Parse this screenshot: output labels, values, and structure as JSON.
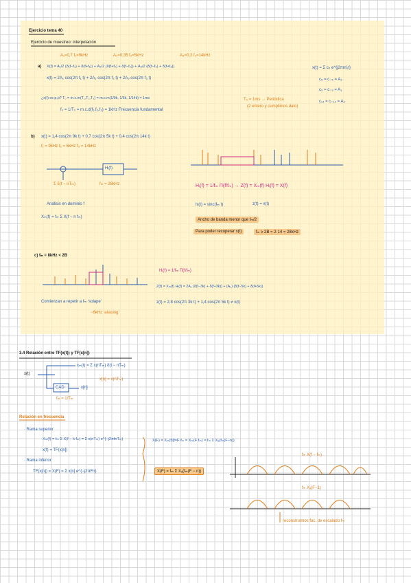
{
  "header": {
    "title": "Ejercicio tema 40",
    "subtitle": "Ejercicio de muestreo: interpolación",
    "params": [
      "A₁=0,7  f₁=9kHz",
      "A₂=0,35  f₂=5kHz",
      "A₃=0,2  f₃=14kHz"
    ]
  },
  "part_a": {
    "label": "a)",
    "eq1": "X(f) = A₁/2 (δ(f−f₁) + δ(f+f₁)) + A₂/2 (δ(f+f₂) + δ(f−f₂)) + A₃/2 (δ(f−f₃) + δ(f+f₃))",
    "eq2": "x(t) = 2A₁ cos(2π f₁ t) + 2A₂ cos(2π f₂ t) + 2A₃ cos(2π f₃ t)",
    "note_periodic": "¿x(t) es p.p?   T₀ = m.c.m(T₁,T₂,T₃) = m.c.m(1/9k, 1/5k, 1/14k) = 1ms",
    "f0": "f₀ = 1/T₀ = m.c.d(f₁,f₂,f₃) = 1kHz   Frecuencia fundamental",
    "result": "T₀ = 1ms → Periódica",
    "result_note": "(2 entero y cumplimos dato)",
    "fourier": [
      "x(t) = Σ cₙ e^{j2πnf₀t}",
      "c₅ = c₋₅ = A₂",
      "c₉ = c₋₉ = A₁",
      "c₁₄ = c₋₁₄ = A₃"
    ]
  },
  "part_b": {
    "label": "b)",
    "eq": "x(t) = 1,4 cos(2π 9k t) + 0,7 cos(2π 5k t) + 0,4 cos(2π 14k t)",
    "freqs": "f₁ = 9kHz   f₂ = 5kHz   f₃ = 14kHz",
    "block": "Hᵢ(f)",
    "block_in": "Σ δ(t − nTₘ)",
    "block_fm": "fₘ = 28kHz",
    "filter": "Hᵢ(f) = 1/fₘ Π(f/fₘ) → Z(f) = Xₘ(f) Hᵢ(f) = X(f)",
    "analysis": "Análisis en dominio f",
    "xm": "Xₘ(f) = fₘ Σ X(f − n fₘ)",
    "ht": "hᵢ(t) = sinc(fₘ t)",
    "zt": "z(t) = x(t)",
    "bandwidth": "Ancho de banda menor que fₘ/2",
    "recover": "Para poder recuperar x(t)",
    "nyquist": "fₘ ≥ 2B = 2·14 = 28kHz"
  },
  "part_c": {
    "label": "c) fₘ = 8kHz < 2B",
    "filter": "Hᵢ(f) = 1/fₘ Π(f/fₘ)",
    "zf": "Z(f) = Xₘ(f) Hᵢ(f) = 2A₁ (δ(f−3k) + δ(f+3k)) + (A₂) (δ(f−5k) + δ(f+5k))",
    "zt": "z(t) = 2,8 cos(2π 3k t) + 1,4 cos(2π 5k t) ≠ x(t)",
    "note": "Comienzan a repetir a fₘ   ‘solape’",
    "alias": "−6kHz ‘aliasing’"
  },
  "section": {
    "title": "3.4 Relación entre TF(x(t)) y TF(x[n])",
    "xt": "x(t)",
    "xm": "xₘ(t) = Σ x(nTₘ) δ(t − nTₘ)",
    "xn": "x[n] = x(nTₘ)",
    "cad": "CAD",
    "fm": "fₘ = 1/Tₘ",
    "out": "x[n]",
    "freq_title": "Relación en frecuencia",
    "upper": "· Rama superior",
    "upper_eq": "Xₘ(f) = fₘ Σ X(f − k fₘ) = Σ x(nTₘ) e^{−j2πfnTₘ}",
    "upper_tf": "x(f) = TF(x[n])",
    "lower": "· Rama inferior",
    "lower_eq": "TF(x[n]) = X(F) = Σ x[n] e^{−j2πFn}",
    "relation": "X(F) = Xₘ(f)|f=F·fₘ = Xₘ(F fₘ) = fₘ Σ Xₐ(fₘ(F−n))",
    "box": "X(F) = fₘ Σ Xₐ(fₘ(F − n))",
    "plot_top": "fₘ X(f − fₘ)",
    "plot_bot": "fₘ Xₐ(F−1)",
    "reconstruct": "reconstruimos fac. de escalado fₘ"
  }
}
